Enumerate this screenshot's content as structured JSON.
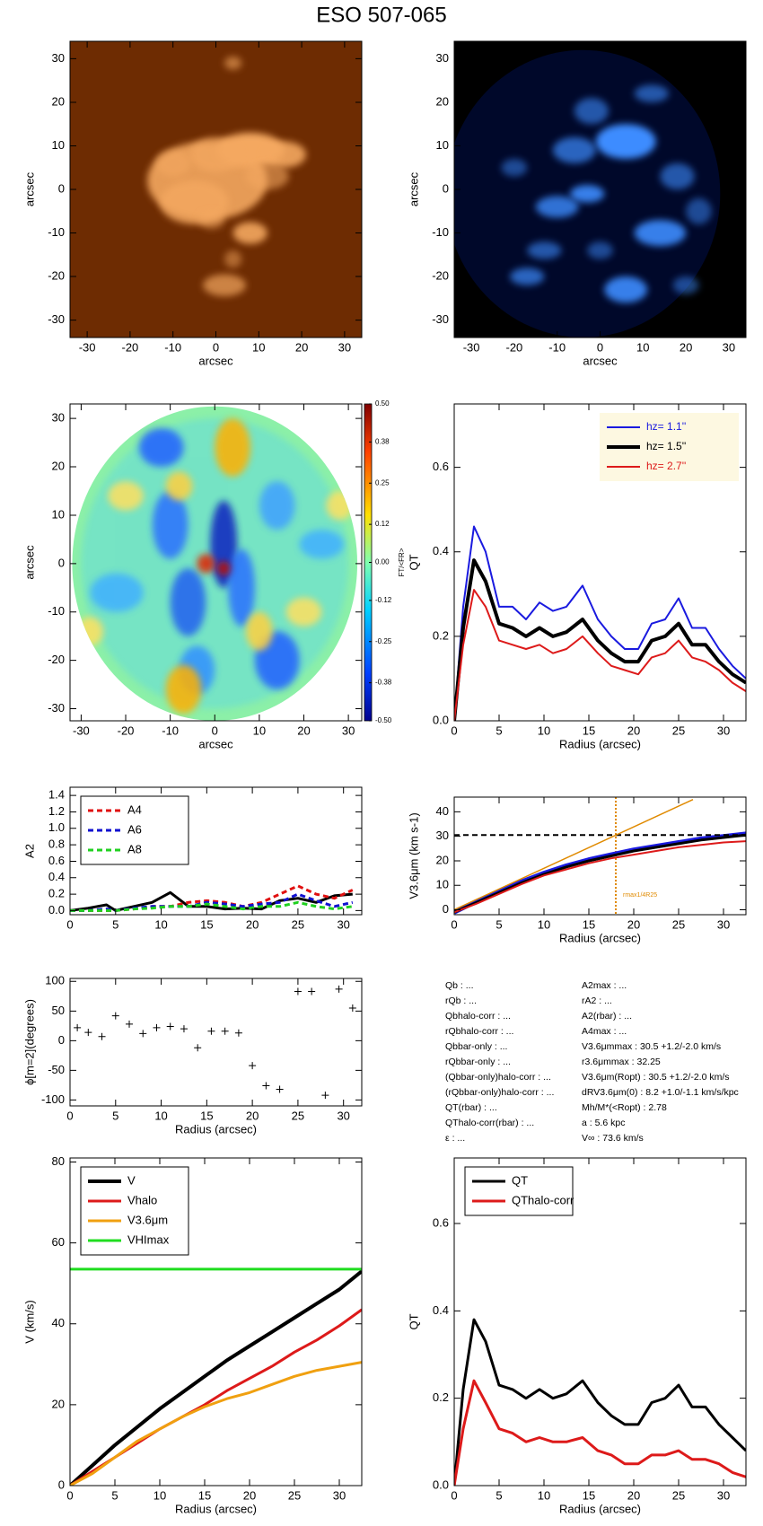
{
  "title": "ESO 507-065",
  "chart_data": [
    {
      "type": "image",
      "colormap": "orange",
      "xlabel": "arcsec",
      "ylabel": "arcsec",
      "xlim": [
        -34,
        34
      ],
      "ylim": [
        -34,
        34
      ],
      "xticks": [
        -30,
        -20,
        -10,
        0,
        10,
        20,
        30
      ],
      "yticks": [
        -30,
        -20,
        -10,
        0,
        10,
        20,
        30
      ]
    },
    {
      "type": "image",
      "colormap": "blue",
      "xlabel": "arcsec",
      "ylabel": "arcsec",
      "xlim": [
        -34,
        34
      ],
      "ylim": [
        -34,
        34
      ],
      "xticks": [
        -30,
        -20,
        -10,
        0,
        10,
        20,
        30
      ],
      "yticks": [
        -30,
        -20,
        -10,
        0,
        10,
        20,
        30
      ]
    },
    {
      "type": "heatmap",
      "xlabel": "arcsec",
      "ylabel": "arcsec",
      "xlim": [
        -32.5,
        33
      ],
      "ylim": [
        -32.5,
        33
      ],
      "xticks": [
        -30,
        -20,
        -10,
        0,
        10,
        20,
        30
      ],
      "yticks": [
        -30,
        -20,
        -10,
        0,
        10,
        20,
        30
      ],
      "colorbar_label": "FT/<FR>",
      "clim": [
        -0.5,
        0.5
      ],
      "cticks": [
        {
          "value": 0.5,
          "label": "0.50"
        },
        {
          "value": 0.38,
          "label": "0.38"
        },
        {
          "value": 0.25,
          "label": "0.25"
        },
        {
          "value": 0.12,
          "label": "0.12"
        },
        {
          "value": 0,
          "label": "0.00"
        },
        {
          "value": -0.12,
          "label": "-0.12"
        },
        {
          "value": -0.25,
          "label": "-0.25"
        },
        {
          "value": -0.38,
          "label": "-0.38"
        },
        {
          "value": -0.5,
          "label": "-0.50"
        }
      ]
    },
    {
      "type": "line",
      "xlabel": "Radius (arcsec)",
      "ylabel": "QT",
      "xlim": [
        0,
        32.5
      ],
      "ylim": [
        0,
        0.75
      ],
      "xticks": [
        0,
        5,
        10,
        15,
        20,
        25,
        30
      ],
      "yticks": [
        {
          "value": 0,
          "label": "0.0"
        },
        0.2,
        0.4,
        0.6
      ],
      "legend": "upper right",
      "legend_fill": "#fdf8e1",
      "x": [
        0,
        1,
        2.2,
        3.5,
        5,
        6.5,
        8,
        9.5,
        11,
        12.5,
        14.3,
        16,
        17.5,
        19,
        20.5,
        22,
        23.5,
        25,
        26.5,
        28,
        29.5,
        31,
        32.5
      ],
      "series": [
        {
          "name": "hz=  1.1''",
          "color": "#1a1adf",
          "width": 2,
          "values": [
            0,
            0.27,
            0.46,
            0.4,
            0.27,
            0.27,
            0.24,
            0.28,
            0.26,
            0.27,
            0.32,
            0.24,
            0.2,
            0.17,
            0.17,
            0.23,
            0.24,
            0.29,
            0.22,
            0.22,
            0.17,
            0.13,
            0.1
          ]
        },
        {
          "name": "hz=  1.5''",
          "color": "#000000",
          "width": 4,
          "values": [
            0,
            0.22,
            0.38,
            0.33,
            0.23,
            0.22,
            0.2,
            0.22,
            0.2,
            0.21,
            0.24,
            0.19,
            0.16,
            0.14,
            0.14,
            0.19,
            0.2,
            0.23,
            0.18,
            0.18,
            0.14,
            0.11,
            0.09
          ]
        },
        {
          "name": "hz=  2.7''",
          "color": "#dd1a1a",
          "width": 2,
          "values": [
            0,
            0.18,
            0.31,
            0.27,
            0.19,
            0.18,
            0.17,
            0.18,
            0.16,
            0.17,
            0.2,
            0.16,
            0.13,
            0.12,
            0.11,
            0.15,
            0.16,
            0.19,
            0.15,
            0.14,
            0.12,
            0.09,
            0.07
          ]
        }
      ]
    },
    {
      "type": "line",
      "xlabel": "",
      "ylabel": "A2",
      "xlim": [
        0,
        32
      ],
      "ylim": [
        -0.05,
        1.5
      ],
      "xticks": [
        0,
        5,
        10,
        15,
        20,
        25,
        30
      ],
      "yticks": [
        {
          "value": 0,
          "label": "0.0"
        },
        0.2,
        0.4,
        0.6,
        0.8,
        {
          "value": 1,
          "label": "1.0"
        },
        1.2,
        1.4
      ],
      "legend": "upper left",
      "legend_fill": "#ffffff",
      "x": [
        0,
        2,
        4,
        5,
        7,
        9,
        11,
        13,
        15,
        17,
        19,
        21,
        23,
        25,
        27,
        29,
        31
      ],
      "series": [
        {
          "color": "#000000",
          "width": 3,
          "values": [
            0,
            0.03,
            0.07,
            0,
            0.05,
            0.1,
            0.22,
            0.05,
            0.05,
            0.02,
            0.03,
            0.02,
            0.12,
            0.15,
            0.1,
            0.18,
            0.2
          ]
        },
        {
          "name": "A4",
          "color": "#e01010",
          "width": 3,
          "dash": true,
          "values": [
            0,
            0,
            0,
            0,
            0.02,
            0.05,
            0.05,
            0.1,
            0.12,
            0.1,
            0.05,
            0.1,
            0.2,
            0.3,
            0.2,
            0.15,
            0.25
          ]
        },
        {
          "name": "A6",
          "color": "#1010d0",
          "width": 3,
          "dash": true,
          "values": [
            0,
            0,
            0.02,
            0,
            0.03,
            0.05,
            0.05,
            0.05,
            0.1,
            0.08,
            0.05,
            0.08,
            0.1,
            0.2,
            0.12,
            0.05,
            0.1
          ]
        },
        {
          "name": "A8",
          "color": "#20d020",
          "width": 3,
          "dash": true,
          "values": [
            0,
            0,
            0,
            0,
            0.02,
            0.03,
            0.05,
            0.05,
            0.08,
            0.05,
            0.02,
            0.05,
            0.05,
            0.1,
            0.05,
            0.02,
            0.05
          ]
        }
      ]
    },
    {
      "type": "line",
      "xlabel": "Radius (arcsec)",
      "ylabel": "V3.6μm (km s-1)",
      "xlim": [
        0,
        32.5
      ],
      "ylim": [
        -2,
        46
      ],
      "xticks": [
        0,
        5,
        10,
        15,
        20,
        25,
        30
      ],
      "yticks": [
        0,
        10,
        20,
        30,
        40
      ],
      "vline": 18,
      "vline_color": "#e08a00",
      "annotation": "rmax1/4R25",
      "x": [
        0,
        2.5,
        5,
        7.5,
        10,
        12.5,
        15,
        17.5,
        20,
        22.5,
        25,
        27.5,
        30,
        32.5
      ],
      "series": [
        {
          "color": "#1a1adf",
          "width": 5,
          "values": [
            -1,
            3.5,
            7.5,
            11.5,
            15,
            18,
            20.5,
            22.5,
            24.5,
            26,
            27.5,
            29,
            30,
            31
          ]
        },
        {
          "color": "#000000",
          "width": 3,
          "values": [
            -1,
            3,
            7,
            11,
            14.5,
            17.5,
            20,
            22,
            24,
            25.5,
            27,
            28.5,
            29.5,
            30.5
          ]
        },
        {
          "color": "#dd1a1a",
          "width": 2,
          "values": [
            -1,
            2.5,
            6.5,
            10.5,
            14,
            16.5,
            19,
            21,
            22.5,
            24,
            25.5,
            26.5,
            27.5,
            28
          ]
        },
        {
          "color": "#000000",
          "width": 2,
          "dash": true,
          "x": [
            0,
            32.5
          ],
          "values": [
            30.5,
            30.5
          ]
        },
        {
          "color": "#e08a00",
          "width": 1.5,
          "x": [
            0,
            26.6
          ],
          "values": [
            0,
            45
          ]
        }
      ]
    },
    {
      "type": "scatter",
      "xlabel": "Radius (arcsec)",
      "ylabel": "ϕ[m=2](degrees)",
      "xlim": [
        0,
        32
      ],
      "ylim": [
        -110,
        105
      ],
      "xticks": [
        0,
        5,
        10,
        15,
        20,
        25,
        30
      ],
      "yticks": [
        -100,
        -50,
        0,
        50,
        100
      ],
      "x": [
        0.8,
        2,
        3.5,
        5,
        6.5,
        8,
        9.5,
        11,
        12.5,
        14,
        15.5,
        17,
        18.5,
        20,
        21.5,
        23,
        25,
        26.5,
        28,
        29.5,
        31
      ],
      "values": [
        22,
        14,
        7,
        42,
        28,
        12,
        22,
        24,
        20,
        -12,
        16,
        16,
        13,
        -42,
        -76,
        -82,
        83,
        83,
        -92,
        87,
        55
      ],
      "color": "#000000"
    },
    {
      "type": "line",
      "xlabel": "Radius (arcsec)",
      "ylabel": "V (km/s)",
      "xlim": [
        0,
        32.5
      ],
      "ylim": [
        0,
        81
      ],
      "xticks": [
        0,
        5,
        10,
        15,
        20,
        25,
        30
      ],
      "yticks": [
        0,
        20,
        40,
        60,
        80
      ],
      "legend": "upper left",
      "legend_fill": "#ffffff",
      "x": [
        0,
        2.5,
        5,
        7.5,
        10,
        12.5,
        15,
        17.5,
        20,
        22.5,
        25,
        27.5,
        30,
        32.5
      ],
      "series": [
        {
          "name": "V",
          "color": "#000000",
          "width": 4,
          "values": [
            0,
            5,
            10,
            14.5,
            19,
            23,
            27,
            31,
            34.5,
            38,
            41.5,
            45,
            48.5,
            53
          ]
        },
        {
          "name": "Vhalo",
          "color": "#dd1a1a",
          "width": 3,
          "values": [
            0,
            3.5,
            7,
            10.5,
            14,
            17,
            20,
            23.5,
            26.5,
            29.5,
            33,
            36,
            39.5,
            43.5
          ]
        },
        {
          "name": "V3.6μm",
          "color": "#f0a010",
          "width": 3,
          "values": [
            0,
            3,
            7,
            11,
            14,
            17,
            19.5,
            21.5,
            23,
            25,
            27,
            28.5,
            29.5,
            30.5
          ]
        },
        {
          "name": "VHImax",
          "color": "#20dd20",
          "width": 3,
          "x": [
            0,
            32.5
          ],
          "values": [
            53.5,
            53.5
          ]
        }
      ]
    },
    {
      "type": "line",
      "xlabel": "Radius (arcsec)",
      "ylabel": "QT",
      "xlim": [
        0,
        32.5
      ],
      "ylim": [
        0,
        0.75
      ],
      "xticks": [
        0,
        5,
        10,
        15,
        20,
        25,
        30
      ],
      "yticks": [
        {
          "value": 0,
          "label": "0.0"
        },
        0.2,
        0.4,
        0.6
      ],
      "legend": "upper left",
      "legend_fill": "#ffffff",
      "x": [
        0,
        1,
        2.2,
        3.5,
        5,
        6.5,
        8,
        9.5,
        11,
        12.5,
        14.3,
        16,
        17.5,
        19,
        20.5,
        22,
        23.5,
        25,
        26.5,
        28,
        29.5,
        31,
        32.5
      ],
      "series": [
        {
          "name": "QT",
          "color": "#000000",
          "width": 3,
          "values": [
            0,
            0.22,
            0.38,
            0.33,
            0.23,
            0.22,
            0.2,
            0.22,
            0.2,
            0.21,
            0.24,
            0.19,
            0.16,
            0.14,
            0.14,
            0.19,
            0.2,
            0.23,
            0.18,
            0.18,
            0.14,
            0.11,
            0.08
          ]
        },
        {
          "name": "QThalo-corr",
          "color": "#dd1a1a",
          "width": 3,
          "values": [
            0,
            0.13,
            0.24,
            0.19,
            0.13,
            0.12,
            0.1,
            0.11,
            0.1,
            0.1,
            0.11,
            0.08,
            0.07,
            0.05,
            0.05,
            0.07,
            0.07,
            0.08,
            0.06,
            0.06,
            0.05,
            0.03,
            0.02
          ]
        }
      ]
    }
  ],
  "parameters": {
    "left": [
      "Qb : ...",
      "rQb : ...",
      "Qbhalo-corr : ...",
      "rQbhalo-corr : ...",
      "Qbbar-only : ...",
      "rQbbar-only : ...",
      "(Qbbar-only)halo-corr : ...",
      "(rQbbar-only)halo-corr : ...",
      "QT(rbar) : ...",
      "QThalo-corr(rbar) : ...",
      "ε : ..."
    ],
    "right": [
      "A2max : ...",
      "rA2 : ...",
      "A2(rbar) : ...",
      "A4max : ...",
      "V3.6μmmax :  30.5 +1.2/-2.0 km/s",
      "r3.6μmmax :  32.25",
      "V3.6μm(Ropt) :  30.5 +1.2/-2.0 km/s",
      "dRV3.6μm(0) :  8.2 +1.0/-1.1 km/s/kpc",
      "Mh/M*(<Ropt) :  2.78",
      "a :   5.6 kpc",
      "V∞ :  73.6 km/s"
    ]
  }
}
